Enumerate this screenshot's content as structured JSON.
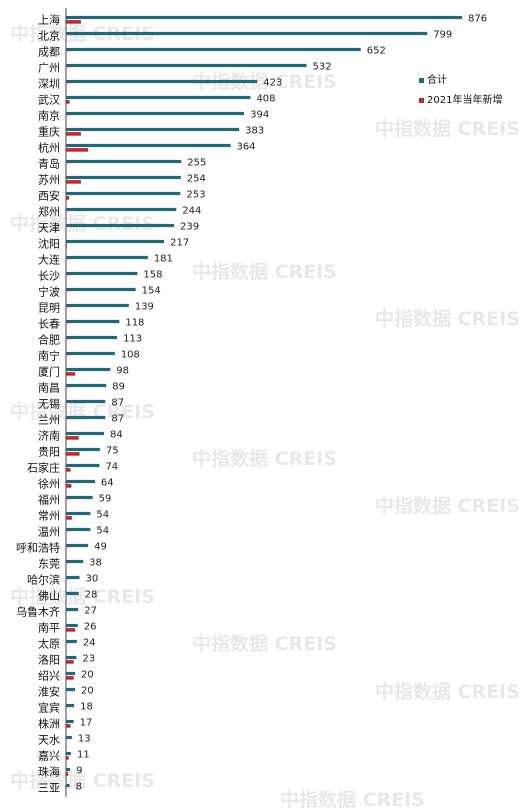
{
  "watermark": "中指数据 CREIS",
  "chart_data": {
    "type": "bar",
    "orientation": "horizontal",
    "categories": [
      "上海",
      "北京",
      "成都",
      "广州",
      "深圳",
      "武汉",
      "南京",
      "重庆",
      "杭州",
      "青岛",
      "苏州",
      "西安",
      "郑州",
      "天津",
      "沈阳",
      "大连",
      "长沙",
      "宁波",
      "昆明",
      "长春",
      "合肥",
      "南宁",
      "厦门",
      "南昌",
      "无锡",
      "兰州",
      "济南",
      "贵阳",
      "石家庄",
      "徐州",
      "福州",
      "常州",
      "温州",
      "呼和浩特",
      "东莞",
      "哈尔滨",
      "佛山",
      "乌鲁木齐",
      "南平",
      "太原",
      "洛阳",
      "绍兴",
      "淮安",
      "宜宾",
      "株洲",
      "天水",
      "嘉兴",
      "珠海",
      "三亚"
    ],
    "series": [
      {
        "name": "合计",
        "color": "#1e6a7a",
        "values": [
          876,
          799,
          652,
          532,
          423,
          408,
          394,
          383,
          364,
          255,
          254,
          253,
          244,
          239,
          217,
          181,
          158,
          154,
          139,
          118,
          113,
          108,
          98,
          89,
          87,
          87,
          84,
          75,
          74,
          64,
          59,
          54,
          54,
          49,
          38,
          30,
          28,
          27,
          26,
          24,
          23,
          20,
          20,
          18,
          17,
          13,
          11,
          9,
          8
        ]
      },
      {
        "name": "2021年当年新增",
        "color": "#c0262d",
        "values": [
          33,
          0,
          0,
          0,
          0,
          8,
          0,
          33,
          49,
          0,
          33,
          7,
          0,
          0,
          2,
          0,
          0,
          0,
          0,
          0,
          0,
          0,
          20,
          0,
          0,
          0,
          28,
          30,
          10,
          12,
          0,
          13,
          0,
          0,
          0,
          0,
          0,
          0,
          20,
          0,
          17,
          17,
          0,
          0,
          10,
          0,
          6,
          5,
          0
        ]
      }
    ],
    "data_labels_series": "合计",
    "legend_position": "right",
    "grid": false
  }
}
